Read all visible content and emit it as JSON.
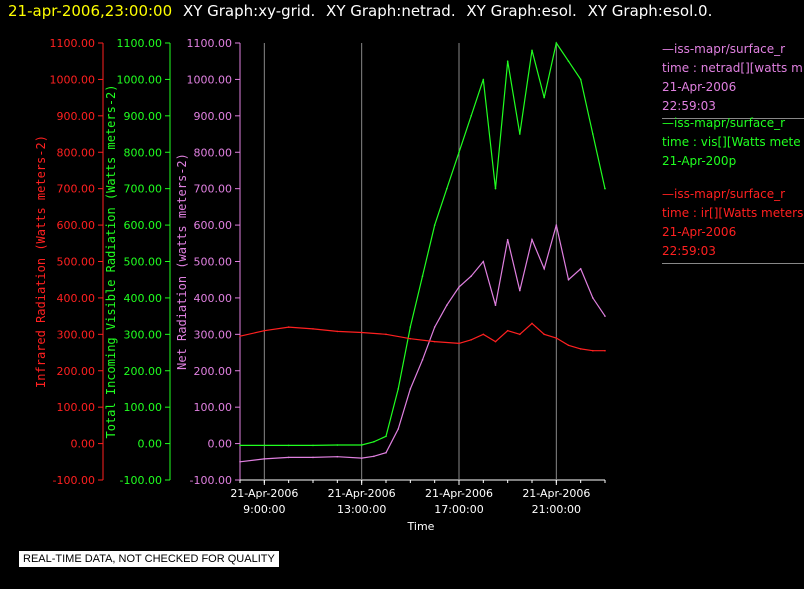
{
  "header": {
    "datetime": "21-apr-2006,23:00:00",
    "graphs": [
      "XY Graph:xy-grid.",
      "XY Graph:netrad.",
      "XY Graph:esol.",
      "XY Graph:esol.0."
    ]
  },
  "chart_data": {
    "type": "line",
    "xlabel": "Time",
    "x_ticks": [
      {
        "date": "21-Apr-2006",
        "time": "9:00:00"
      },
      {
        "date": "21-Apr-2006",
        "time": "13:00:00"
      },
      {
        "date": "21-Apr-2006",
        "time": "17:00:00"
      },
      {
        "date": "21-Apr-2006",
        "time": "21:00:00"
      }
    ],
    "x_range_hours": [
      8.0,
      23.0
    ],
    "ylim": [
      -100,
      1100
    ],
    "y_ticks": [
      "1100.00",
      "1000.00",
      "900.00",
      "800.00",
      "700.00",
      "600.00",
      "500.00",
      "400.00",
      "300.00",
      "200.00",
      "100.00",
      "0.00",
      "-100.00"
    ],
    "axes": [
      {
        "name": "ir",
        "label": "Infrared Radiation (Watts meters-2)",
        "color": "#ff2020"
      },
      {
        "name": "vis",
        "label": "Total Incoming Visible Radiation (Watts meters-2)",
        "color": "#20ff20"
      },
      {
        "name": "net",
        "label": "Net Radiation (watts meters-2)",
        "color": "#e080e0"
      }
    ],
    "grid": true,
    "series": [
      {
        "name": "netrad",
        "color": "#e080e0",
        "x": [
          "8:00",
          "9:00",
          "10:00",
          "11:00",
          "12:00",
          "13:00",
          "13:30",
          "14:00",
          "14:30",
          "15:00",
          "15:30",
          "16:00",
          "16:30",
          "17:00",
          "17:30",
          "18:00",
          "18:30",
          "19:00",
          "19:30",
          "20:00",
          "20:30",
          "21:00",
          "21:30",
          "22:00",
          "22:30",
          "23:00"
        ],
        "y": [
          -50,
          -42,
          -38,
          -38,
          -36,
          -40,
          -35,
          -25,
          40,
          150,
          230,
          320,
          380,
          430,
          460,
          500,
          380,
          560,
          420,
          560,
          480,
          600,
          450,
          480,
          400,
          350
        ]
      },
      {
        "name": "vis",
        "color": "#20ff20",
        "x": [
          "8:00",
          "9:00",
          "10:00",
          "11:00",
          "12:00",
          "13:00",
          "13:30",
          "14:00",
          "14:30",
          "15:00",
          "15:30",
          "16:00",
          "16:30",
          "17:00",
          "17:30",
          "18:00",
          "18:30",
          "19:00",
          "19:30",
          "20:00",
          "20:30",
          "21:00",
          "21:30",
          "22:00",
          "22:30",
          "23:00"
        ],
        "y": [
          -5,
          -5,
          -5,
          -5,
          -4,
          -4,
          5,
          20,
          150,
          320,
          460,
          600,
          700,
          800,
          900,
          1000,
          700,
          1050,
          850,
          1080,
          950,
          1100,
          1050,
          1000,
          850,
          700
        ]
      },
      {
        "name": "ir",
        "color": "#ff2020",
        "x": [
          "8:00",
          "9:00",
          "10:00",
          "11:00",
          "12:00",
          "13:00",
          "14:00",
          "15:00",
          "16:00",
          "17:00",
          "17:30",
          "18:00",
          "18:30",
          "19:00",
          "19:30",
          "20:00",
          "20:30",
          "21:00",
          "21:30",
          "22:00",
          "22:30",
          "23:00"
        ],
        "y": [
          295,
          310,
          320,
          315,
          308,
          305,
          300,
          288,
          280,
          275,
          285,
          300,
          280,
          310,
          300,
          330,
          300,
          290,
          270,
          260,
          255,
          255
        ]
      }
    ]
  },
  "legend": [
    {
      "title": "—iss-mapr/surface_r",
      "line2": "time : netrad[][watts m",
      "line3": "21-Apr-2006",
      "line4": "22:59:03",
      "color": "#e080e0"
    },
    {
      "title": "—iss-mapr/surface_r",
      "line2": "time : vis[][Watts mete",
      "line3": "21-Apr-200p",
      "line4": "",
      "color": "#20ff20"
    },
    {
      "title": "—iss-mapr/surface_r",
      "line2": "time : ir[][Watts meters",
      "line3": "21-Apr-2006",
      "line4": "22:59:03",
      "color": "#ff2020"
    }
  ],
  "notice": "REAL-TIME DATA, NOT CHECKED FOR QUALITY"
}
